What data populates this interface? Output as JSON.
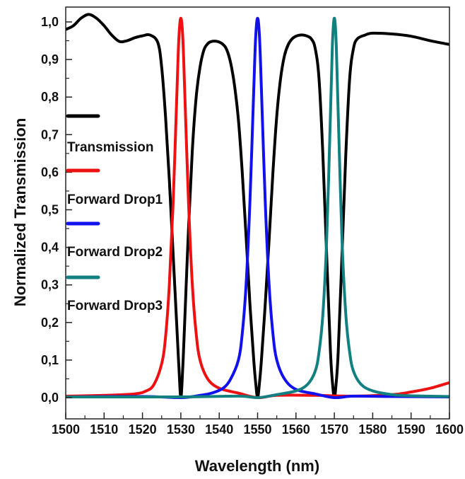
{
  "chart_data": {
    "type": "line",
    "title": "",
    "xlabel": "Wavelength (nm)",
    "ylabel": "Normalized Transmission",
    "xlim": [
      1500,
      1600
    ],
    "ylim": [
      0.0,
      1.03
    ],
    "x_ticks": [
      1500,
      1510,
      1520,
      1530,
      1540,
      1550,
      1560,
      1570,
      1580,
      1590,
      1600
    ],
    "y_ticks": [
      {
        "value": 0.0,
        "label": "0,0"
      },
      {
        "value": 0.1,
        "label": "0,1"
      },
      {
        "value": 0.2,
        "label": "0,2"
      },
      {
        "value": 0.3,
        "label": "0,3"
      },
      {
        "value": 0.4,
        "label": "0,4"
      },
      {
        "value": 0.5,
        "label": "0,5"
      },
      {
        "value": 0.6,
        "label": "0,6"
      },
      {
        "value": 0.7,
        "label": "0,7"
      },
      {
        "value": 0.8,
        "label": "0,8"
      },
      {
        "value": 0.9,
        "label": "0,9"
      },
      {
        "value": 1.0,
        "label": "1,0"
      }
    ],
    "grid": false,
    "legend_position": "left-inside",
    "series": [
      {
        "name": "Transmission",
        "color": "#000000",
        "points": [
          [
            1500,
            0.98
          ],
          [
            1502,
            0.99
          ],
          [
            1504,
            1.01
          ],
          [
            1506,
            1.02
          ],
          [
            1508,
            1.01
          ],
          [
            1510,
            0.99
          ],
          [
            1512,
            0.965
          ],
          [
            1514,
            0.948
          ],
          [
            1516,
            0.95
          ],
          [
            1518,
            0.958
          ],
          [
            1520,
            0.963
          ],
          [
            1522,
            0.965
          ],
          [
            1524,
            0.945
          ],
          [
            1525,
            0.88
          ],
          [
            1526,
            0.75
          ],
          [
            1527,
            0.58
          ],
          [
            1528,
            0.38
          ],
          [
            1529,
            0.18
          ],
          [
            1529.5,
            0.08
          ],
          [
            1530,
            0.0
          ],
          [
            1530.5,
            0.08
          ],
          [
            1531,
            0.2
          ],
          [
            1532,
            0.45
          ],
          [
            1533,
            0.66
          ],
          [
            1534,
            0.8
          ],
          [
            1535,
            0.88
          ],
          [
            1536,
            0.925
          ],
          [
            1537,
            0.942
          ],
          [
            1538,
            0.948
          ],
          [
            1539.5,
            0.948
          ],
          [
            1541,
            0.94
          ],
          [
            1542,
            0.925
          ],
          [
            1543,
            0.89
          ],
          [
            1544,
            0.83
          ],
          [
            1545,
            0.74
          ],
          [
            1546,
            0.6
          ],
          [
            1547,
            0.43
          ],
          [
            1548,
            0.25
          ],
          [
            1549,
            0.1
          ],
          [
            1549.5,
            0.04
          ],
          [
            1550,
            0.0
          ],
          [
            1550.5,
            0.04
          ],
          [
            1551,
            0.1
          ],
          [
            1552,
            0.25
          ],
          [
            1553,
            0.42
          ],
          [
            1554,
            0.6
          ],
          [
            1555,
            0.75
          ],
          [
            1556,
            0.85
          ],
          [
            1557,
            0.91
          ],
          [
            1558,
            0.94
          ],
          [
            1559,
            0.955
          ],
          [
            1560,
            0.962
          ],
          [
            1561,
            0.965
          ],
          [
            1562,
            0.965
          ],
          [
            1563,
            0.962
          ],
          [
            1564,
            0.955
          ],
          [
            1565,
            0.93
          ],
          [
            1566,
            0.85
          ],
          [
            1567,
            0.65
          ],
          [
            1568,
            0.38
          ],
          [
            1569,
            0.12
          ],
          [
            1569.6,
            0.03
          ],
          [
            1570,
            0.0
          ],
          [
            1570.4,
            0.03
          ],
          [
            1571,
            0.12
          ],
          [
            1572,
            0.38
          ],
          [
            1573,
            0.65
          ],
          [
            1574,
            0.85
          ],
          [
            1575,
            0.93
          ],
          [
            1576,
            0.955
          ],
          [
            1578,
            0.965
          ],
          [
            1580,
            0.97
          ],
          [
            1585,
            0.968
          ],
          [
            1590,
            0.962
          ],
          [
            1595,
            0.95
          ],
          [
            1600,
            0.94
          ]
        ]
      },
      {
        "name": "Forward Drop1",
        "color": "#ee1111",
        "points": [
          [
            1500,
            0.004
          ],
          [
            1510,
            0.006
          ],
          [
            1518,
            0.01
          ],
          [
            1521,
            0.018
          ],
          [
            1523,
            0.035
          ],
          [
            1525,
            0.09
          ],
          [
            1526,
            0.16
          ],
          [
            1527,
            0.3
          ],
          [
            1528,
            0.52
          ],
          [
            1529,
            0.82
          ],
          [
            1529.5,
            0.96
          ],
          [
            1530,
            1.01
          ],
          [
            1530.5,
            0.96
          ],
          [
            1531,
            0.82
          ],
          [
            1532,
            0.52
          ],
          [
            1533,
            0.3
          ],
          [
            1534,
            0.17
          ],
          [
            1535,
            0.1
          ],
          [
            1537,
            0.05
          ],
          [
            1540,
            0.025
          ],
          [
            1545,
            0.012
          ],
          [
            1550,
            0.0
          ],
          [
            1555,
            0.006
          ],
          [
            1565,
            0.006
          ],
          [
            1575,
            0.004
          ],
          [
            1585,
            0.008
          ],
          [
            1590,
            0.015
          ],
          [
            1595,
            0.025
          ],
          [
            1600,
            0.04
          ]
        ]
      },
      {
        "name": "Forward Drop2",
        "color": "#1111ee",
        "points": [
          [
            1500,
            0.002
          ],
          [
            1520,
            0.003
          ],
          [
            1530,
            0.0
          ],
          [
            1535,
            0.006
          ],
          [
            1538,
            0.012
          ],
          [
            1541,
            0.025
          ],
          [
            1543,
            0.05
          ],
          [
            1545,
            0.1
          ],
          [
            1546,
            0.17
          ],
          [
            1547,
            0.3
          ],
          [
            1548,
            0.52
          ],
          [
            1549,
            0.82
          ],
          [
            1549.5,
            0.96
          ],
          [
            1550,
            1.01
          ],
          [
            1550.5,
            0.96
          ],
          [
            1551,
            0.82
          ],
          [
            1552,
            0.52
          ],
          [
            1553,
            0.3
          ],
          [
            1554,
            0.17
          ],
          [
            1555,
            0.1
          ],
          [
            1557,
            0.05
          ],
          [
            1560,
            0.022
          ],
          [
            1565,
            0.01
          ],
          [
            1570,
            0.0
          ],
          [
            1575,
            0.004
          ],
          [
            1585,
            0.003
          ],
          [
            1600,
            0.002
          ]
        ]
      },
      {
        "name": "Forward Drop3",
        "color": "#128080",
        "points": [
          [
            1500,
            0.002
          ],
          [
            1530,
            0.002
          ],
          [
            1545,
            0.004
          ],
          [
            1550,
            0.0
          ],
          [
            1555,
            0.008
          ],
          [
            1560,
            0.018
          ],
          [
            1563,
            0.035
          ],
          [
            1565,
            0.07
          ],
          [
            1566,
            0.12
          ],
          [
            1567,
            0.22
          ],
          [
            1568,
            0.42
          ],
          [
            1569,
            0.76
          ],
          [
            1569.5,
            0.94
          ],
          [
            1570,
            1.01
          ],
          [
            1570.5,
            0.94
          ],
          [
            1571,
            0.76
          ],
          [
            1572,
            0.42
          ],
          [
            1573,
            0.22
          ],
          [
            1574,
            0.12
          ],
          [
            1575,
            0.07
          ],
          [
            1577,
            0.035
          ],
          [
            1580,
            0.018
          ],
          [
            1585,
            0.008
          ],
          [
            1590,
            0.005
          ],
          [
            1600,
            0.003
          ]
        ]
      }
    ]
  }
}
